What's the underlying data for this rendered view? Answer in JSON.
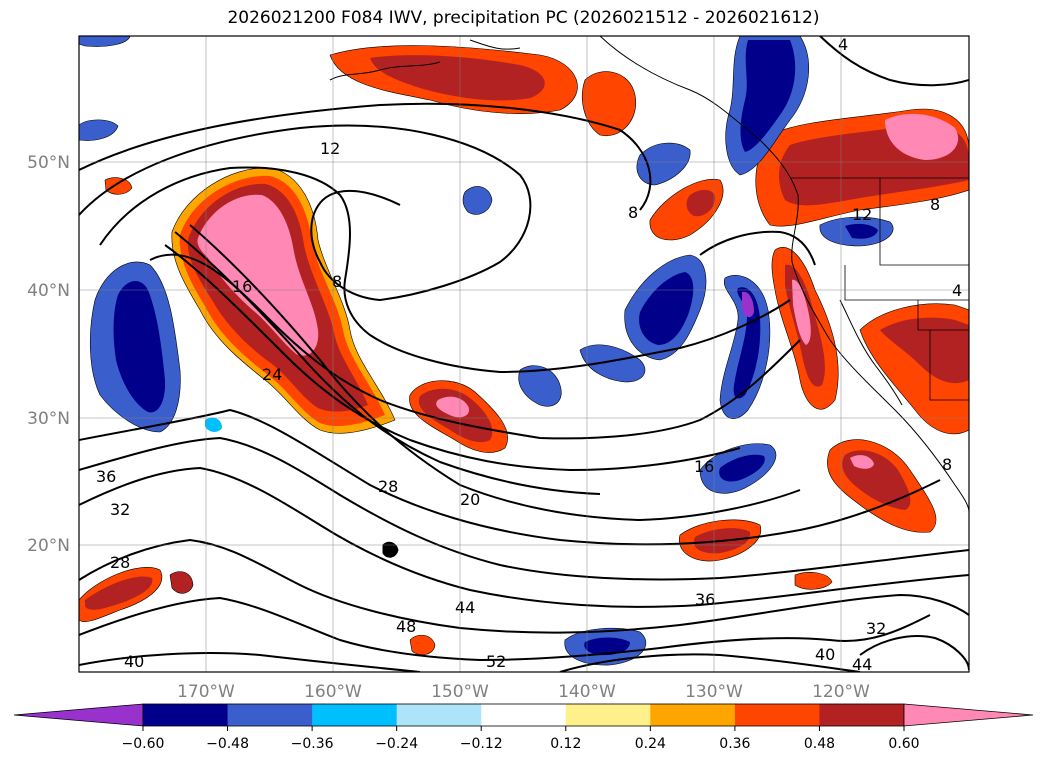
{
  "title": "2026021200 F084 IWV, precipitation PC (2026021512 - 2026021612)",
  "map": {
    "projection": "plate-carree",
    "lon_range": [
      -180,
      -110
    ],
    "lat_range": [
      10,
      60
    ],
    "lat_labels": [
      "50°N",
      "40°N",
      "30°N",
      "20°N"
    ],
    "lon_labels": [
      "170°W",
      "160°W",
      "150°W",
      "140°W",
      "130°W",
      "120°W"
    ],
    "grid": true
  },
  "iwv_contour_labels": [
    "12",
    "8",
    "8",
    "4",
    "8",
    "12",
    "16",
    "24",
    "28",
    "20",
    "16",
    "36",
    "32",
    "28",
    "44",
    "48",
    "36",
    "32",
    "40",
    "40",
    "52",
    "44",
    "8",
    "4"
  ],
  "colorbar": {
    "ticks": [
      "−0.60",
      "−0.48",
      "−0.36",
      "−0.24",
      "−0.12",
      "0.12",
      "0.24",
      "0.36",
      "0.48",
      "0.60"
    ],
    "colors": {
      "under": "#9932cc",
      "c1": "#00008b",
      "c2": "#3a5fcd",
      "c3": "#00bfff",
      "c4": "#aee4fa",
      "c5": "#ffffff",
      "c6": "#fff08c",
      "c7": "#ffa500",
      "c8": "#ff4500",
      "c9": "#b22222",
      "over": "#ff88b5"
    }
  }
}
